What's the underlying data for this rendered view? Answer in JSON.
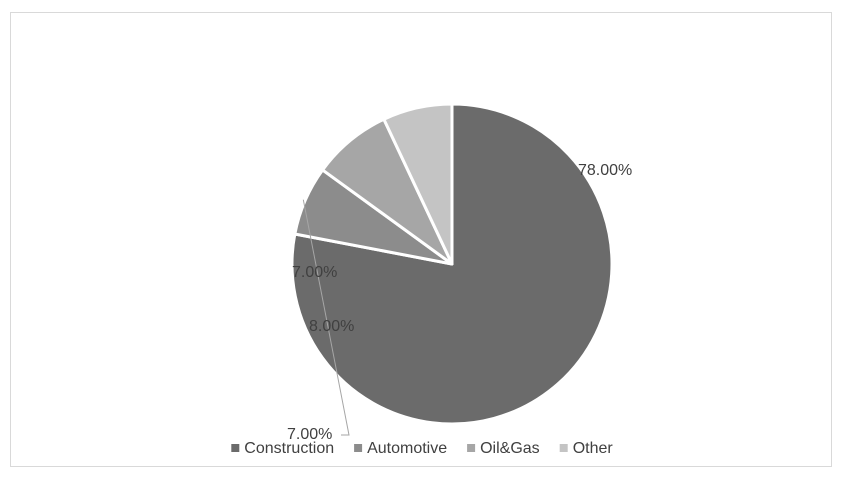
{
  "chart_data": {
    "type": "pie",
    "title": "",
    "categories": [
      "Construction",
      "Automotive",
      "Oil&Gas",
      "Other"
    ],
    "values": [
      78.0,
      7.0,
      8.0,
      7.0
    ],
    "data_labels": [
      "78.00%",
      "7.00%",
      "8.00%",
      "7.00%"
    ],
    "colors": [
      "#6b6b6b",
      "#8c8c8c",
      "#a6a6a6",
      "#c4c4c4"
    ],
    "legend_position": "bottom",
    "start_angle_deg": 0,
    "direction": "clockwise"
  }
}
